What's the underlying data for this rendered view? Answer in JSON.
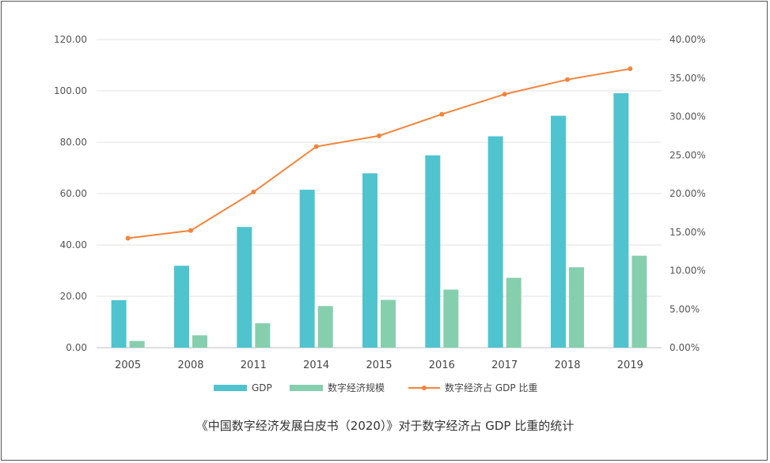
{
  "caption": "《中国数字经济发展白皮书（2020）》对于数字经济占 GDP 比重的统计",
  "chart_data": {
    "type": "bar",
    "categories": [
      "2005",
      "2008",
      "2011",
      "2014",
      "2015",
      "2016",
      "2017",
      "2018",
      "2019"
    ],
    "series": [
      {
        "name": "GDP",
        "type": "bar",
        "axis": "left",
        "color": "#4fc4cf",
        "values": [
          18.5,
          31.9,
          47.0,
          61.5,
          67.9,
          74.9,
          82.3,
          90.3,
          99.1
        ]
      },
      {
        "name": "数字经济规模",
        "type": "bar",
        "axis": "left",
        "color": "#86cfae",
        "values": [
          2.6,
          4.8,
          9.5,
          16.2,
          18.6,
          22.6,
          27.2,
          31.3,
          35.8
        ]
      },
      {
        "name": "数字经济占 GDP 比重",
        "type": "line",
        "axis": "right",
        "color": "#f4843a",
        "values": [
          0.142,
          0.152,
          0.202,
          0.261,
          0.275,
          0.303,
          0.329,
          0.348,
          0.362
        ]
      }
    ],
    "y_left": {
      "ylim": [
        0,
        120
      ],
      "ticks": [
        "0.00",
        "20.00",
        "40.00",
        "60.00",
        "80.00",
        "100.00",
        "120.00"
      ]
    },
    "y_right": {
      "ylim": [
        0,
        0.4
      ],
      "ticks": [
        "0.00%",
        "5.00%",
        "10.00%",
        "15.00%",
        "20.00%",
        "25.00%",
        "30.00%",
        "35.00%",
        "40.00%"
      ]
    },
    "grid": true,
    "legend_position": "bottom"
  }
}
